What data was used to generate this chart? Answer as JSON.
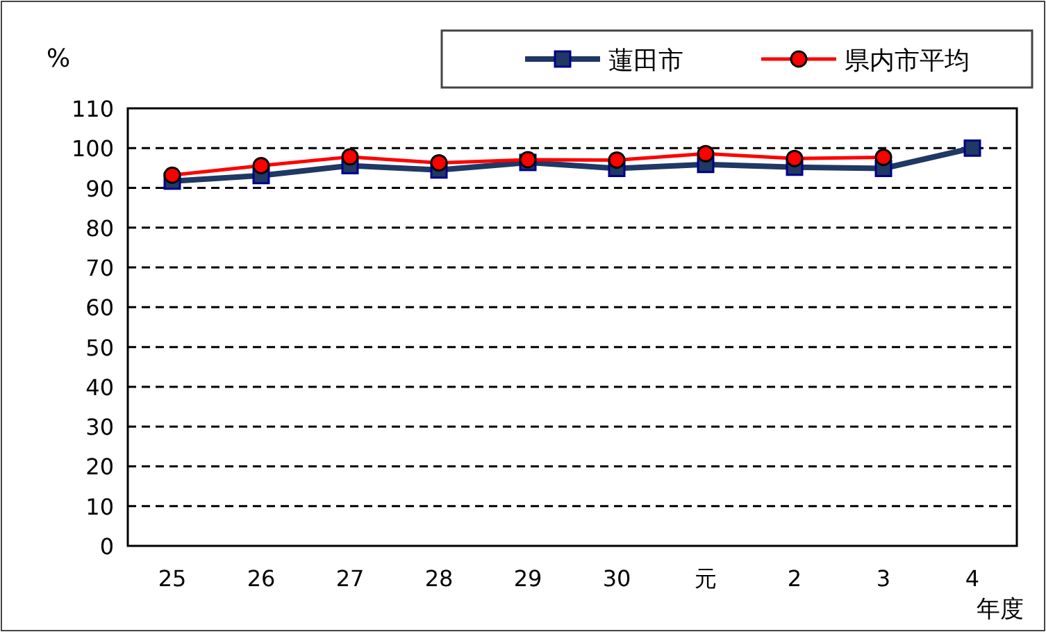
{
  "chart_data": {
    "type": "line",
    "ylabel": "%",
    "xlabel": "年度",
    "categories": [
      "25",
      "26",
      "27",
      "28",
      "29",
      "30",
      "元",
      "2",
      "3",
      "4"
    ],
    "series": [
      {
        "name": "蓮田市",
        "color": "#1f3864",
        "marker": "square",
        "values": [
          91.7,
          93.1,
          95.6,
          94.5,
          96.4,
          94.9,
          95.9,
          95.2,
          94.9,
          100
        ]
      },
      {
        "name": "県内市平均",
        "color": "#ff0000",
        "marker": "circle",
        "values": [
          93.2,
          95.6,
          97.8,
          96.3,
          97.1,
          97.0,
          98.6,
          97.4,
          97.7,
          null
        ]
      }
    ],
    "ylim": [
      0,
      110
    ],
    "yticks": [
      0,
      10,
      20,
      30,
      40,
      50,
      60,
      70,
      80,
      90,
      100,
      110
    ],
    "grid": "y",
    "legend": "top right"
  }
}
